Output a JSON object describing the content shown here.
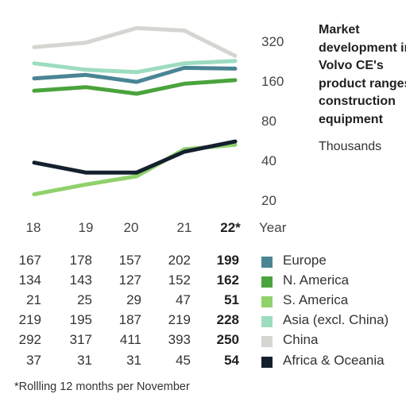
{
  "chart_data": {
    "type": "line",
    "title": "Market development in Volvo CE's product ranges, construction equipment",
    "unit": "Thousands",
    "y_scale": "log",
    "y_ticks": [
      "320",
      "160",
      "80",
      "40",
      "20"
    ],
    "x_axis_label": "Year",
    "x_tick_labels": [
      "18",
      "19",
      "20",
      "21",
      "22*"
    ],
    "series": [
      {
        "name": "Europe",
        "color": "#4a8593",
        "values": [
          167,
          178,
          157,
          202,
          199
        ]
      },
      {
        "name": "N. America",
        "color": "#4aa33c",
        "values": [
          134,
          143,
          127,
          152,
          162
        ]
      },
      {
        "name": "S. America",
        "color": "#8fd16b",
        "values": [
          21,
          25,
          29,
          47,
          51
        ]
      },
      {
        "name": "Asia (excl. China)",
        "color": "#9ddcbf",
        "values": [
          219,
          195,
          187,
          219,
          228
        ]
      },
      {
        "name": "China",
        "color": "#d5d5d2",
        "values": [
          292,
          317,
          411,
          393,
          250
        ]
      },
      {
        "name": "Africa & Oceania",
        "color": "#14202e",
        "values": [
          37,
          31,
          31,
          45,
          54
        ]
      }
    ],
    "table_values": [
      [
        "167",
        "178",
        "157",
        "202",
        "199"
      ],
      [
        "134",
        "143",
        "127",
        "152",
        "162"
      ],
      [
        "21",
        "25",
        "29",
        "47",
        "51"
      ],
      [
        "219",
        "195",
        "187",
        "219",
        "228"
      ],
      [
        "292",
        "317",
        "411",
        "393",
        "250"
      ],
      [
        "37",
        "31",
        "31",
        "45",
        "54"
      ]
    ],
    "footnote": "*Rollling 12 months per November"
  }
}
